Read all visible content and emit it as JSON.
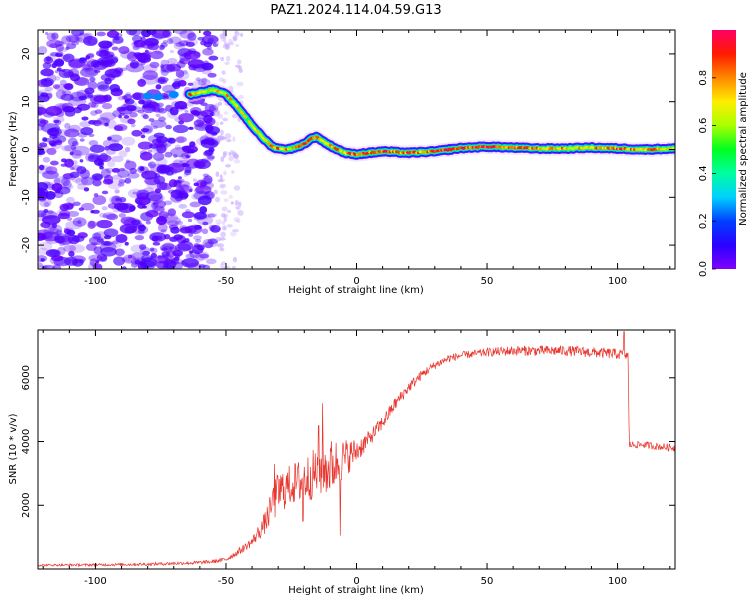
{
  "figure": {
    "title": "PAZ1.2024.114.04.59.G13"
  },
  "chart_data": [
    {
      "type": "heatmap",
      "xlabel": "Height of straight line (km)",
      "ylabel": "Frequency (Hz)",
      "xlim": [
        -122,
        122
      ],
      "ylim": [
        -25,
        25
      ],
      "x_ticks": [
        -100,
        -50,
        0,
        50,
        100
      ],
      "x_tick_labels": [
        "-100",
        "-50",
        "0",
        "50",
        "100"
      ],
      "y_ticks": [
        -20,
        -10,
        0,
        10,
        20
      ],
      "y_tick_labels": [
        "-20",
        "-10",
        "0",
        "10",
        "20"
      ],
      "grid": false,
      "colorbar": {
        "label": "Normalized spectral amplitude",
        "range": [
          0,
          1
        ],
        "ticks": [
          0.0,
          0.2,
          0.4,
          0.6,
          0.8
        ],
        "tick_labels": [
          "0.0",
          "0.2",
          "0.4",
          "0.6",
          "0.8"
        ],
        "colormap": "gist_rainbow"
      },
      "ridge": {
        "x": [
          -64,
          -55,
          -50,
          -45,
          -40,
          -36,
          -32,
          -28,
          -24,
          -20,
          -17,
          -15,
          -12,
          -8,
          -4,
          0,
          5,
          10,
          20,
          30,
          40,
          50,
          60,
          70,
          80,
          90,
          100,
          110,
          122
        ],
        "y": [
          11.5,
          12.5,
          11.5,
          8.5,
          5.0,
          2.5,
          0.5,
          0.0,
          0.3,
          1.2,
          2.4,
          2.6,
          1.4,
          0.2,
          -0.8,
          -1.0,
          -0.7,
          -0.4,
          -0.7,
          -0.4,
          0.3,
          0.6,
          0.4,
          0.2,
          0.2,
          0.4,
          0.2,
          0.0,
          0.2
        ],
        "peak": [
          0.8,
          0.6,
          0.7,
          0.6,
          0.6,
          0.6,
          0.8,
          0.8,
          0.7,
          0.8,
          0.85,
          0.8,
          0.7,
          0.75,
          0.8,
          0.9,
          0.8,
          0.85,
          0.8,
          0.9,
          0.9,
          0.95,
          0.85,
          0.8,
          0.75,
          0.8,
          0.85,
          0.8,
          0.7
        ]
      },
      "noise_region": {
        "x": [
          -122,
          -54
        ],
        "y": [
          -25,
          25
        ],
        "level": [
          0.12,
          0.24
        ]
      },
      "dense_spots": [
        {
          "x": -80,
          "y": 11.2,
          "level": 0.25
        },
        {
          "x": -76,
          "y": 11.0,
          "level": 0.25
        },
        {
          "x": -70,
          "y": 11.5,
          "level": 0.25
        }
      ]
    },
    {
      "type": "line",
      "xlabel": "Height of straight line (km)",
      "ylabel": "SNR (10 * v/v)",
      "xlim": [
        -122,
        122
      ],
      "ylim": [
        0,
        7500
      ],
      "x_ticks": [
        -100,
        -50,
        0,
        50,
        100
      ],
      "x_tick_labels": [
        "-100",
        "-50",
        "0",
        "50",
        "100"
      ],
      "y_ticks": [
        2000,
        4000,
        6000
      ],
      "y_tick_labels": [
        "2000",
        "4000",
        "6000"
      ],
      "grid": false,
      "color": "#e8352e",
      "baseline": {
        "x": [
          -122,
          -100,
          -80,
          -60,
          -55,
          -50,
          -45,
          -40,
          -35,
          -30,
          -25,
          -20,
          -15,
          -10,
          -5,
          0,
          5,
          10,
          15,
          20,
          25,
          30,
          35,
          40,
          45,
          50,
          60,
          70,
          80,
          90,
          100,
          104,
          104.5,
          110,
          115,
          122
        ],
        "y": [
          120,
          130,
          150,
          200,
          230,
          300,
          550,
          850,
          1450,
          2400,
          2650,
          2800,
          3050,
          3200,
          3450,
          3700,
          4100,
          4600,
          5200,
          5700,
          6100,
          6400,
          6600,
          6700,
          6750,
          6800,
          6850,
          6850,
          6850,
          6800,
          6750,
          6700,
          3900,
          3900,
          3850,
          3800
        ]
      },
      "noise_amp": {
        "x": [
          -122,
          -52,
          -40,
          -35,
          -30,
          -25,
          -20,
          -15,
          -10,
          -5,
          0,
          5,
          15,
          30,
          45,
          60,
          104,
          104.5,
          122
        ],
        "y": [
          30,
          60,
          150,
          350,
          700,
          650,
          750,
          800,
          900,
          650,
          400,
          250,
          200,
          130,
          120,
          160,
          170,
          110,
          120
        ]
      },
      "spikes": [
        {
          "x": -32.0,
          "y": 2450
        },
        {
          "x": -31.4,
          "y": 3300
        },
        {
          "x": -13.0,
          "y": 5200
        },
        {
          "x": -14.5,
          "y": 4500
        },
        {
          "x": -6.2,
          "y": 1050
        },
        {
          "x": -20.5,
          "y": 1500
        },
        {
          "x": 102.5,
          "y": 7450
        }
      ]
    }
  ]
}
